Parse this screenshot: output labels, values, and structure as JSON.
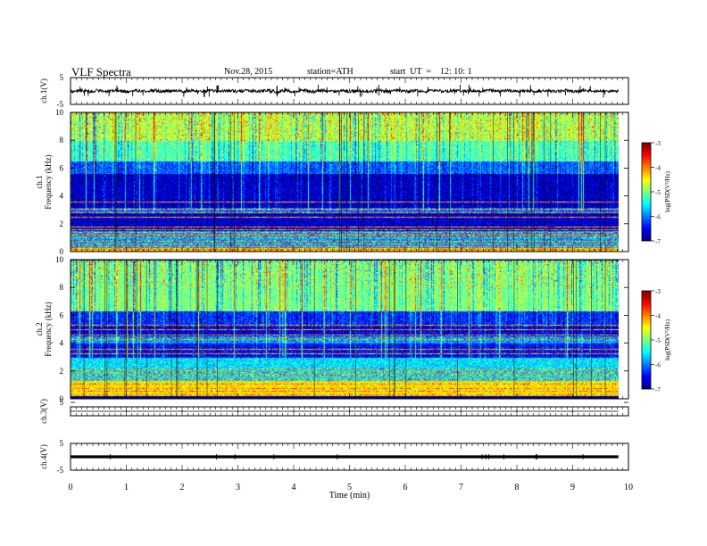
{
  "header": {
    "title": "VLF  Spectra",
    "date": "Nov.28, 2015",
    "station": "station=ATH",
    "start": "start  UT  =    12: 10: 1"
  },
  "chart_data": {
    "type": "heatmap",
    "panels": [
      {
        "id": "ch1-waveform",
        "type": "line",
        "ylabel": "ch.1(V)",
        "yticks": [
          "5",
          "-5"
        ],
        "ylim": [
          -5,
          5
        ],
        "baseline": 0,
        "amplitude": "noise ±1 V with impulsive spikes"
      },
      {
        "id": "ch1-spectrogram",
        "type": "heatmap",
        "ylabel": "ch.1\nFrequency (kHz)",
        "ylabel_lines": [
          "ch.1",
          "Frequency  (kHz)"
        ],
        "yticks": [
          "0",
          "2",
          "4",
          "6",
          "8",
          "10"
        ],
        "ylim": [
          0,
          10
        ],
        "bands": [
          {
            "from": 0,
            "to": 0.3,
            "level": -4.2
          },
          {
            "from": 0.3,
            "to": 1.5,
            "level": -5.9
          },
          {
            "from": 1.5,
            "to": 2.8,
            "level": -6.7
          },
          {
            "from": 2.8,
            "to": 3.2,
            "level": -6.1
          },
          {
            "from": 3.2,
            "to": 5.6,
            "level": -6.75
          },
          {
            "from": 5.6,
            "to": 6.5,
            "level": -6.1
          },
          {
            "from": 6.5,
            "to": 8.0,
            "level": -5.2
          },
          {
            "from": 8.0,
            "to": 10,
            "level": -4.8
          }
        ],
        "colorbar": {
          "label": "log(PSD(V²/Hz)",
          "min": -7,
          "max": -3,
          "ticks": [
            "-3",
            "-4",
            "-5",
            "-6",
            "-7"
          ]
        }
      },
      {
        "id": "ch2-spectrogram",
        "type": "heatmap",
        "ylabel": "ch.2\nFrequency (kHz)",
        "ylabel_lines": [
          "ch.2",
          "Frequency  (kHz)"
        ],
        "yticks": [
          "0",
          "2",
          "4",
          "6",
          "8",
          "10"
        ],
        "ylim": [
          0,
          10
        ],
        "bands": [
          {
            "from": 0,
            "to": 0.2,
            "level": -7
          },
          {
            "from": 0.2,
            "to": 1.3,
            "level": -4.4
          },
          {
            "from": 1.3,
            "to": 3.0,
            "level": -5.6
          },
          {
            "from": 3.0,
            "to": 4.0,
            "level": -6.5
          },
          {
            "from": 4.0,
            "to": 4.5,
            "level": -5.9
          },
          {
            "from": 4.5,
            "to": 5.2,
            "level": -6.6
          },
          {
            "from": 5.2,
            "to": 6.3,
            "level": -6.3
          },
          {
            "from": 6.3,
            "to": 10,
            "level": -5.0
          }
        ],
        "colorbar": {
          "label": "log(PSD(V²/Hz)",
          "min": -7,
          "max": -3,
          "ticks": [
            "-3",
            "-4",
            "-5",
            "-6",
            "-7"
          ]
        }
      },
      {
        "id": "ch3-waveform",
        "type": "line",
        "ylabel": "ch.3(V)",
        "yticks": [
          "5"
        ],
        "ylim": [
          -5,
          5
        ],
        "baseline": 0,
        "amplitude": "flat"
      },
      {
        "id": "ch4-waveform",
        "type": "line",
        "ylabel": "ch.4(V)",
        "yticks": [
          "5",
          "-5"
        ],
        "ylim": [
          -5,
          5
        ],
        "baseline": 0,
        "amplitude": "flat, thick trace"
      }
    ],
    "x": {
      "xlabel": "Time  (min)",
      "xlim": [
        0,
        10
      ],
      "data_end": 9.82,
      "ticks": [
        "0",
        "1",
        "2",
        "3",
        "4",
        "5",
        "6",
        "7",
        "8",
        "9",
        "10"
      ]
    },
    "grid": false
  }
}
